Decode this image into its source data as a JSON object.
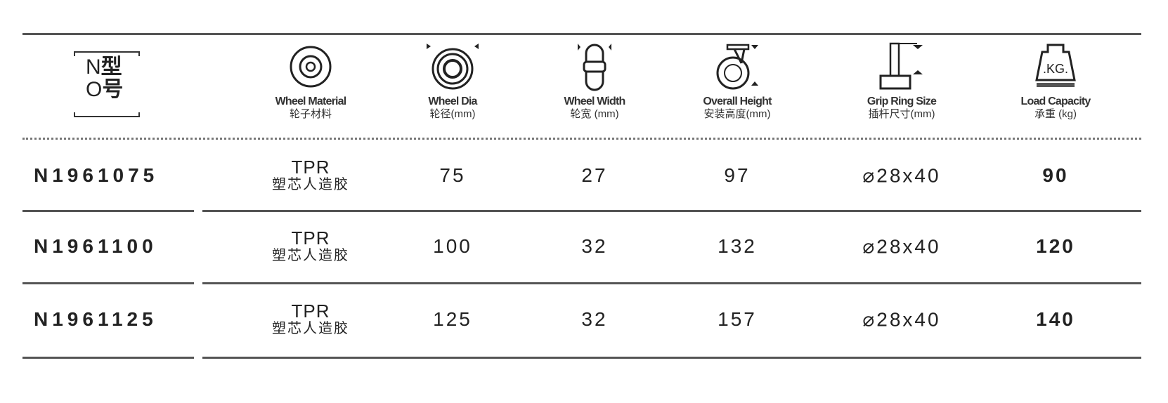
{
  "header": {
    "model_label": {
      "top_letter": "N",
      "top_cn": "型",
      "bottom_letter": "O",
      "bottom_cn": "号"
    },
    "columns": [
      {
        "icon": "wheel-material-icon",
        "label": "Wheel Material",
        "sub": "轮子材料"
      },
      {
        "icon": "wheel-dia-icon",
        "label": "Wheel Dia",
        "sub": "轮径(mm)"
      },
      {
        "icon": "wheel-width-icon",
        "label": "Wheel Width",
        "sub": "轮宽 (mm)"
      },
      {
        "icon": "overall-height-icon",
        "label": "Overall Height",
        "sub": "安装高度(mm)"
      },
      {
        "icon": "grip-ring-size-icon",
        "label": "Grip Ring Size",
        "sub": "插杆尺寸(mm)"
      },
      {
        "icon": "load-capacity-icon",
        "label": "Load Capacity",
        "sub": "承重 (kg)",
        "icon_text": ".KG."
      }
    ]
  },
  "rows": [
    {
      "model": "N1961075",
      "material": "TPR",
      "material_cn": "塑芯人造胶",
      "dia": "75",
      "width": "27",
      "height": "97",
      "grip": "⌀28x40",
      "load": "90"
    },
    {
      "model": "N1961100",
      "material": "TPR",
      "material_cn": "塑芯人造胶",
      "dia": "100",
      "width": "32",
      "height": "132",
      "grip": "⌀28x40",
      "load": "120"
    },
    {
      "model": "N1961125",
      "material": "TPR",
      "material_cn": "塑芯人造胶",
      "dia": "125",
      "width": "32",
      "height": "157",
      "grip": "⌀28x40",
      "load": "140"
    }
  ]
}
